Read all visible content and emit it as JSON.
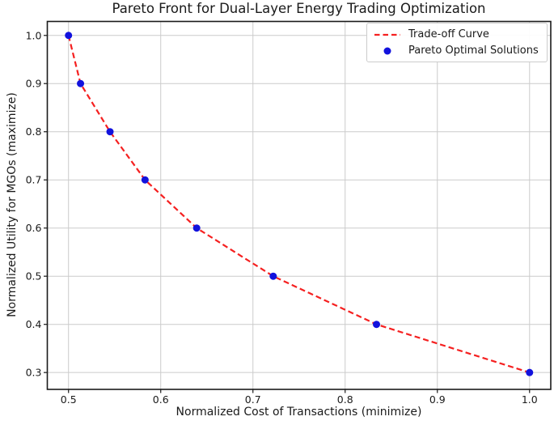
{
  "figure": {
    "background": "#ffffff",
    "text_color": "#1a1a1a",
    "grid_color": "#cbcbcb",
    "spine_color": "#1a1a1a",
    "legend_border_color": "#cccccc"
  },
  "chart_data": {
    "type": "line",
    "title": "Pareto Front for Dual-Layer Energy Trading Optimization",
    "xlabel": "Normalized Cost of Transactions (minimize)",
    "ylabel": "Normalized Utility for MGOs (maximize)",
    "xlim": [
      0.477,
      1.023
    ],
    "ylim": [
      0.265,
      1.029
    ],
    "x_ticks": [
      0.5,
      0.6,
      0.7,
      0.8,
      0.9,
      1.0
    ],
    "y_ticks": [
      0.3,
      0.4,
      0.5,
      0.6,
      0.7,
      0.8,
      0.9,
      1.0
    ],
    "grid": true,
    "legend_position": "upper right",
    "series": [
      {
        "name": "Trade-off Curve",
        "type": "line",
        "linestyle": "dashed",
        "color": "#f52020",
        "linewidth": 2.2,
        "x": [
          0.5,
          0.513,
          0.545,
          0.583,
          0.639,
          0.722,
          0.834,
          1.0
        ],
        "y": [
          1.0,
          0.9,
          0.8,
          0.7,
          0.6,
          0.5,
          0.4,
          0.3
        ]
      },
      {
        "name": "Pareto Optimal Solutions",
        "type": "scatter",
        "color": "#1212dd",
        "marker": "circle",
        "marker_radius": 4.5,
        "x": [
          0.5,
          0.513,
          0.545,
          0.583,
          0.639,
          0.722,
          0.834,
          1.0
        ],
        "y": [
          1.0,
          0.9,
          0.8,
          0.7,
          0.6,
          0.5,
          0.4,
          0.3
        ]
      }
    ]
  }
}
